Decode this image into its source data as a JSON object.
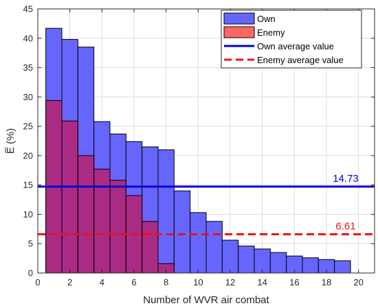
{
  "chart_data": {
    "type": "bar",
    "xlabel": "Number of WVR air combat",
    "ylabel": "E̅ (%)",
    "xlim": [
      0,
      21
    ],
    "ylim": [
      0,
      45
    ],
    "xticks": [
      0,
      2,
      4,
      6,
      8,
      10,
      12,
      14,
      16,
      18,
      20
    ],
    "yticks": [
      0,
      5,
      10,
      15,
      20,
      25,
      30,
      35,
      40,
      45
    ],
    "grid": true,
    "legend_position": "top-right",
    "bar_width": 1,
    "series": [
      {
        "name": "Own",
        "color": "#6666ff",
        "x": [
          1,
          2,
          3,
          4,
          5,
          6,
          7,
          8,
          9,
          10,
          11,
          12,
          13,
          14,
          15,
          16,
          17,
          18,
          19
        ],
        "values": [
          41.7,
          39.8,
          38.5,
          25.8,
          23.7,
          22.4,
          21.5,
          21.0,
          14.0,
          10.3,
          8.8,
          5.6,
          4.6,
          4.1,
          3.5,
          2.9,
          2.6,
          2.3,
          2.1
        ]
      },
      {
        "name": "Enemy",
        "color": "#c2185b",
        "x": [
          1,
          2,
          3,
          4,
          5,
          6,
          7,
          8
        ],
        "values": [
          29.4,
          25.9,
          20.0,
          17.7,
          15.8,
          13.2,
          8.8,
          1.6
        ]
      }
    ],
    "reference_lines": [
      {
        "name": "Own average value",
        "value": 14.73,
        "label": "14.73",
        "color": "#0000dd",
        "style": "solid"
      },
      {
        "name": "Enemy average value",
        "value": 6.61,
        "label": "6.61",
        "color": "#ee1111",
        "style": "dashed"
      }
    ],
    "legend": [
      {
        "label": "Own",
        "kind": "patch",
        "color": "#6666ff"
      },
      {
        "label": "Enemy",
        "kind": "patch",
        "color": "#ff6666"
      },
      {
        "label": "Own average value",
        "kind": "line",
        "color": "#0000dd",
        "style": "solid"
      },
      {
        "label": "Enemy average value",
        "kind": "line",
        "color": "#ee1111",
        "style": "dashed"
      }
    ]
  }
}
